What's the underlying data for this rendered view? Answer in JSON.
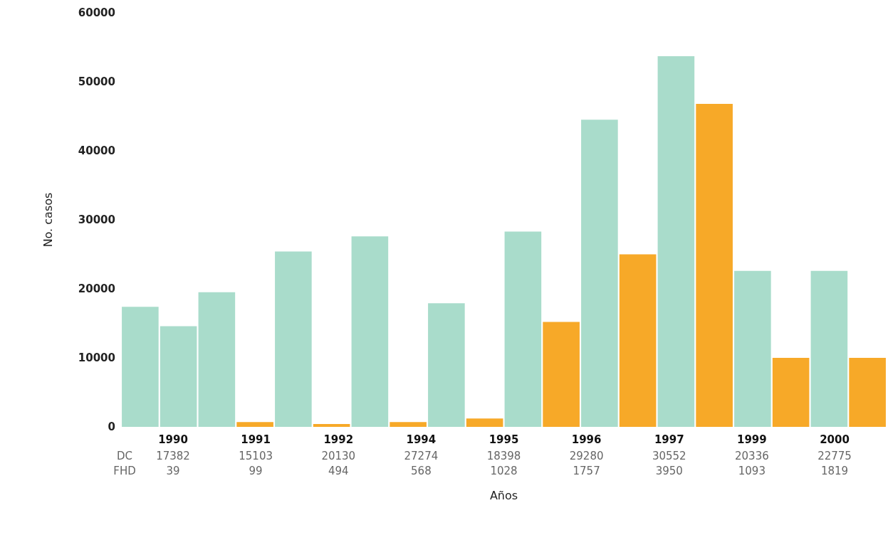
{
  "chart_data": {
    "type": "bar",
    "xlabel": "Años",
    "ylabel": "No. casos",
    "categories": [
      null,
      null,
      null,
      null,
      null,
      null,
      null,
      null,
      null,
      null,
      null,
      null,
      null,
      null,
      null,
      null,
      null,
      null,
      null,
      null
    ],
    "values": [
      17400,
      14600,
      19500,
      700,
      25400,
      400,
      27600,
      700,
      17900,
      1200,
      28300,
      15200,
      44500,
      25000,
      53700,
      46800,
      22600,
      10000,
      22600,
      10000
    ],
    "colors": [
      "#a9dccb",
      "#a9dccb",
      "#a9dccb",
      "#f7a928",
      "#a9dccb",
      "#f7a928",
      "#a9dccb",
      "#f7a928",
      "#a9dccb",
      "#f7a928",
      "#a9dccb",
      "#f7a928",
      "#a9dccb",
      "#f7a928",
      "#a9dccb",
      "#f7a928",
      "#a9dccb",
      "#f7a928",
      "#a9dccb",
      "#f7a928"
    ],
    "ylim": [
      0,
      60000
    ],
    "yticks": [
      0,
      10000,
      20000,
      30000,
      40000,
      50000,
      60000
    ],
    "grid": false,
    "annotations": [
      "1990",
      "1991",
      "1992",
      "1994",
      "1995",
      "1996",
      "1997",
      "1999",
      "2000",
      "DC",
      "17382",
      "15103",
      "20130",
      "27274",
      "18398",
      "29280",
      "30552",
      "20336",
      "22775",
      "FHD",
      "39",
      "99",
      "494",
      "568",
      "1028",
      "1757",
      "3950",
      "1093",
      "1819"
    ]
  }
}
